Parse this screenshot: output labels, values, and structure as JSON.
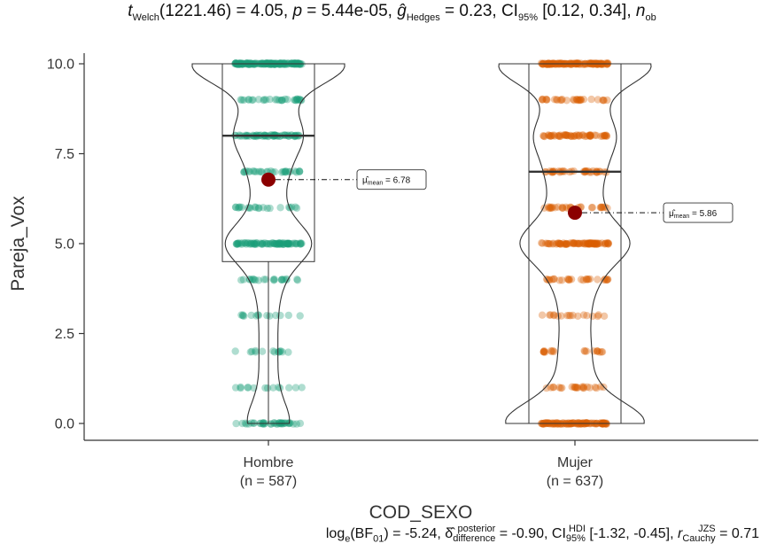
{
  "title": {
    "t_sub": "Welch",
    "t_df": "(1221.46) = 4.05, ",
    "p_text": "= 5.44e-05, ",
    "g_sub": "Hedges",
    "g_val": " = 0.23, CI",
    "ci_sub": "95%",
    "ci_val": " [0.12, 0.34], ",
    "n_sub": "ob"
  },
  "footer": {
    "log_text": "log",
    "log_sub": "e",
    "bf_text": "(BF",
    "bf_sub": "01",
    "bf_val": ") = -5.24, ",
    "delta_sup": "posterior",
    "delta_sub": "difference",
    "delta_val": " = -0.90, CI",
    "hdi_sup": "HDI",
    "hdi_sub": "95%",
    "hdi_val": " [-1.32, -0.45], ",
    "r_sup": "JZS",
    "r_sub": "Cauchy",
    "r_val": " = 0.71"
  },
  "chart_data": {
    "type": "box-violin-jitter",
    "xlabel": "COD_SEXO",
    "ylabel": "Pareja_Vox",
    "ylim": [
      0,
      10
    ],
    "yticks": [
      "0.0",
      "2.5",
      "5.0",
      "7.5",
      "10.0"
    ],
    "ytick_values": [
      0,
      2.5,
      5,
      7.5,
      10
    ],
    "groups": [
      {
        "name": "Hombre",
        "n_label": "(n = 587)",
        "color": "#1b9e77",
        "mean": 6.78,
        "mean_label": "= 6.78",
        "median": 8,
        "q1": 4.5,
        "q3": 10,
        "whisker_low": 0,
        "whisker_high": 10,
        "levels": [
          0,
          1,
          2,
          3,
          4,
          5,
          6,
          7,
          8,
          9,
          10
        ],
        "level_counts": [
          40,
          14,
          14,
          14,
          22,
          80,
          22,
          30,
          60,
          30,
          150
        ]
      },
      {
        "name": "Mujer",
        "n_label": "(n = 637)",
        "color": "#d95f02",
        "mean": 5.86,
        "mean_label": "= 5.86",
        "median": 7,
        "q1": 0,
        "q3": 10,
        "whisker_low": 0,
        "whisker_high": 10,
        "levels": [
          0,
          1,
          2,
          3,
          4,
          5,
          6,
          7,
          8,
          9,
          10
        ],
        "level_counts": [
          110,
          24,
          20,
          18,
          28,
          80,
          30,
          36,
          56,
          30,
          120
        ]
      }
    ],
    "mean_marker_color": "#8b0000"
  }
}
